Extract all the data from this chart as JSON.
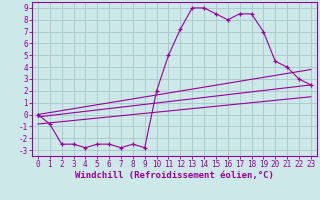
{
  "xlabel": "Windchill (Refroidissement éolien,°C)",
  "background_color": "#cce8e8",
  "grid_color": "#aacccc",
  "line_color": "#990099",
  "xlim": [
    -0.5,
    23.5
  ],
  "ylim": [
    -3.5,
    9.5
  ],
  "xticks": [
    0,
    1,
    2,
    3,
    4,
    5,
    6,
    7,
    8,
    9,
    10,
    11,
    12,
    13,
    14,
    15,
    16,
    17,
    18,
    19,
    20,
    21,
    22,
    23
  ],
  "yticks": [
    -3,
    -2,
    -1,
    0,
    1,
    2,
    3,
    4,
    5,
    6,
    7,
    8,
    9
  ],
  "main_x": [
    0,
    1,
    2,
    3,
    4,
    5,
    6,
    7,
    8,
    9,
    10,
    11,
    12,
    13,
    14,
    15,
    16,
    17,
    18,
    19,
    20,
    21,
    22,
    23
  ],
  "main_y": [
    0,
    -0.8,
    -2.5,
    -2.5,
    -2.8,
    -2.5,
    -2.5,
    -2.8,
    -2.5,
    -2.8,
    2,
    5,
    7.2,
    9,
    9,
    8.5,
    8,
    8.5,
    8.5,
    7,
    4.5,
    4,
    3,
    2.5
  ],
  "line2_x": [
    0,
    23
  ],
  "line2_y": [
    -0.2,
    2.5
  ],
  "line3_x": [
    0,
    23
  ],
  "line3_y": [
    -0.8,
    1.5
  ],
  "line4_x": [
    0,
    23
  ],
  "line4_y": [
    0.0,
    3.8
  ],
  "tick_font_size": 5.5,
  "xlabel_font_size": 6.5
}
